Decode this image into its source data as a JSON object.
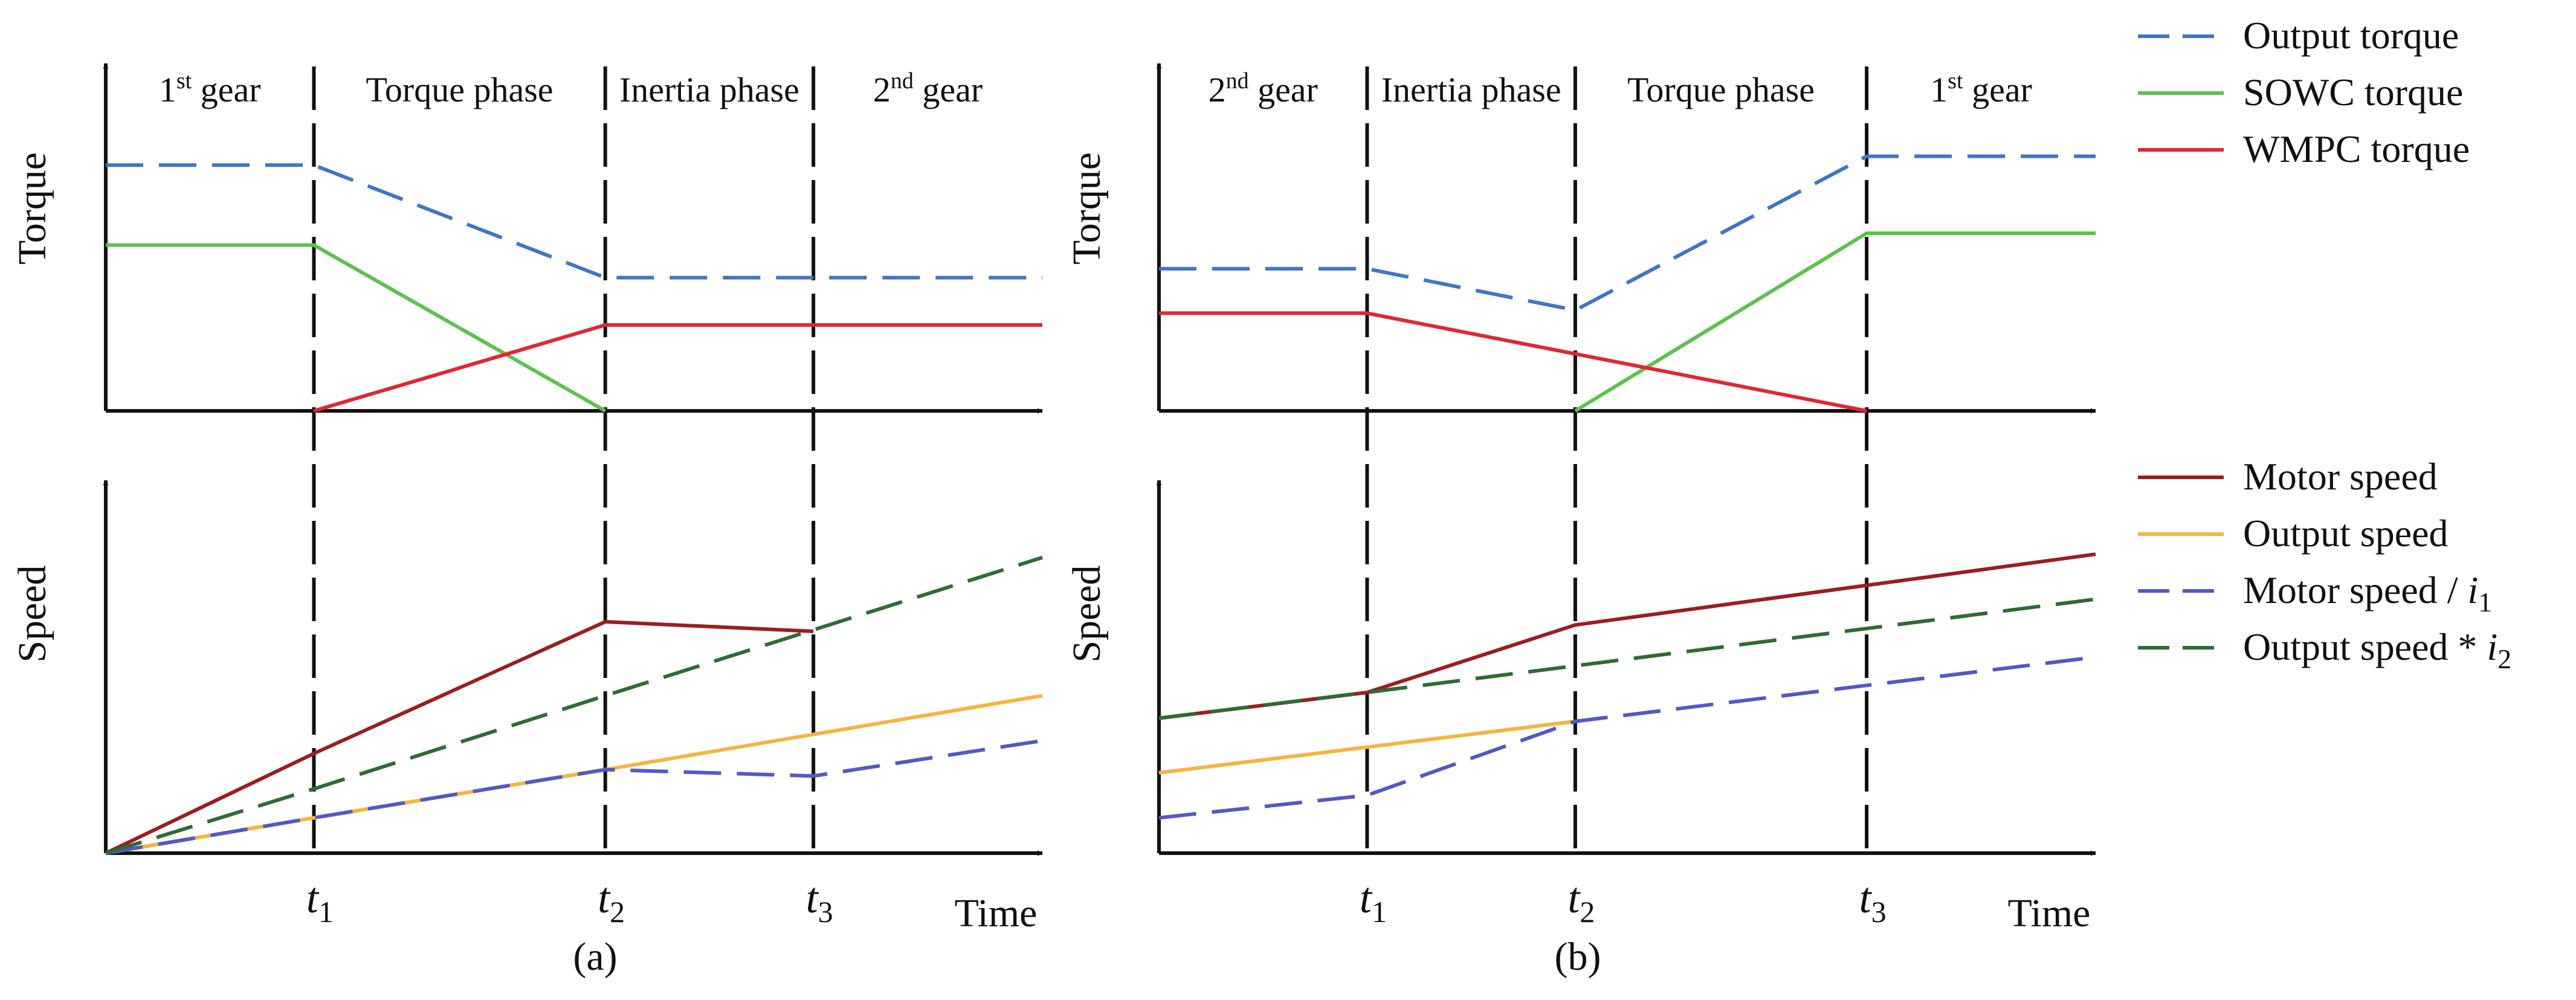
{
  "colors": {
    "output_torque": "#3F76C4",
    "sowc_torque": "#5CC24E",
    "wmpc_torque": "#E02734",
    "motor_speed": "#9A1E22",
    "output_speed": "#F5B440",
    "motor_speed_ratio": "#5458C4",
    "output_speed_ratio": "#2F6B33",
    "axis": "#111111"
  },
  "chart_data": [
    {
      "id": "a",
      "panel_label": "(a)",
      "type": "line",
      "phases": [
        "1st gear",
        "Torque phase",
        "Inertia phase",
        "2nd gear"
      ],
      "phase_rich": [
        {
          "base": "1",
          "sup": "st",
          "rest": " gear"
        },
        {
          "base": "Torque phase",
          "sup": "",
          "rest": ""
        },
        {
          "base": "Inertia phase",
          "sup": "",
          "rest": ""
        },
        {
          "base": "2",
          "sup": "nd",
          "rest": " gear"
        }
      ],
      "time_ticks": [
        {
          "base": "t",
          "sub": "1",
          "x": 1
        },
        {
          "base": "t",
          "sub": "2",
          "x": 2.4
        },
        {
          "base": "t",
          "sub": "3",
          "x": 3.4
        }
      ],
      "xlim": [
        0,
        4.5
      ],
      "xlabel": "Time",
      "torque": {
        "ylabel": "Torque",
        "ylim": [
          0,
          1
        ],
        "series": [
          {
            "name": "Output torque",
            "key": "output_torque",
            "dash": true,
            "x": [
              0,
              1,
              2.4,
              3.4,
              4.5
            ],
            "y": [
              0.83,
              0.83,
              0.45,
              0.45,
              0.45
            ]
          },
          {
            "name": "SOWC torque",
            "key": "sowc_torque",
            "dash": false,
            "x": [
              0,
              1,
              2.4
            ],
            "y": [
              0.56,
              0.56,
              0
            ]
          },
          {
            "name": "WMPC torque",
            "key": "wmpc_torque",
            "dash": false,
            "x": [
              1,
              2.4,
              4.5
            ],
            "y": [
              0,
              0.29,
              0.29
            ]
          }
        ]
      },
      "speed": {
        "ylabel": "Speed",
        "ylim": [
          0,
          1
        ],
        "series": [
          {
            "name": "Motor speed",
            "key": "motor_speed",
            "dash": false,
            "x": [
              0,
              1,
              2.4,
              3.4
            ],
            "y": [
              0,
              0.31,
              0.72,
              0.69
            ]
          },
          {
            "name": "Output speed",
            "key": "output_speed",
            "dash": false,
            "x": [
              0,
              1,
              2.4,
              4.5
            ],
            "y": [
              0,
              0.11,
              0.26,
              0.49
            ]
          },
          {
            "name": "Motor speed / i1",
            "key": "motor_speed_ratio",
            "dash": true,
            "x": [
              0,
              1,
              2.4,
              3.4,
              4.5
            ],
            "y": [
              0,
              0.11,
              0.26,
              0.24,
              0.35
            ]
          },
          {
            "name": "Output speed * i2",
            "key": "output_speed_ratio",
            "dash": true,
            "x": [
              0,
              1,
              2.4,
              4.5
            ],
            "y": [
              0,
              0.2,
              0.49,
              0.92
            ]
          }
        ]
      }
    },
    {
      "id": "b",
      "panel_label": "(b)",
      "type": "line",
      "phases": [
        "2nd gear",
        "Inertia phase",
        "Torque phase",
        "1st gear"
      ],
      "phase_rich": [
        {
          "base": "2",
          "sup": "nd",
          "rest": " gear"
        },
        {
          "base": "Inertia phase",
          "sup": "",
          "rest": ""
        },
        {
          "base": "Torque phase",
          "sup": "",
          "rest": ""
        },
        {
          "base": "1",
          "sup": "st",
          "rest": " gear"
        }
      ],
      "time_ticks": [
        {
          "base": "t",
          "sub": "1",
          "x": 1
        },
        {
          "base": "t",
          "sub": "2",
          "x": 2
        },
        {
          "base": "t",
          "sub": "3",
          "x": 3.4
        }
      ],
      "xlim": [
        0,
        4.5
      ],
      "xlabel": "Time",
      "torque": {
        "ylabel": "Torque",
        "ylim": [
          0,
          1
        ],
        "series": [
          {
            "name": "Output torque",
            "key": "output_torque",
            "dash": true,
            "x": [
              0,
              1,
              2,
              3.4,
              4.5
            ],
            "y": [
              0.48,
              0.48,
              0.34,
              0.86,
              0.86
            ]
          },
          {
            "name": "SOWC torque",
            "key": "sowc_torque",
            "dash": false,
            "x": [
              2,
              3.4,
              4.5
            ],
            "y": [
              0,
              0.6,
              0.6
            ]
          },
          {
            "name": "WMPC torque",
            "key": "wmpc_torque",
            "dash": false,
            "x": [
              0,
              1,
              3.4
            ],
            "y": [
              0.33,
              0.33,
              0
            ]
          }
        ]
      },
      "speed": {
        "ylabel": "Speed",
        "ylim": [
          0,
          1
        ],
        "series": [
          {
            "name": "Motor speed",
            "key": "motor_speed",
            "dash": false,
            "x": [
              0,
              1,
              2,
              4.5
            ],
            "y": [
              0.42,
              0.5,
              0.71,
              0.93
            ]
          },
          {
            "name": "Output speed",
            "key": "output_speed",
            "dash": false,
            "x": [
              0,
              2
            ],
            "y": [
              0.25,
              0.41
            ]
          },
          {
            "name": "Motor speed / i1",
            "key": "motor_speed_ratio",
            "dash": true,
            "x": [
              0,
              1,
              2,
              4.5
            ],
            "y": [
              0.11,
              0.18,
              0.41,
              0.61
            ]
          },
          {
            "name": "Output speed * i2",
            "key": "output_speed_ratio",
            "dash": true,
            "x": [
              0,
              1,
              4.5
            ],
            "y": [
              0.42,
              0.5,
              0.79
            ]
          }
        ]
      }
    }
  ],
  "legend": {
    "torque": [
      {
        "label": "Output torque",
        "key": "output_torque",
        "dash": true
      },
      {
        "label": "SOWC torque",
        "key": "sowc_torque",
        "dash": false
      },
      {
        "label": "WMPC torque",
        "key": "wmpc_torque",
        "dash": false
      }
    ],
    "speed": [
      {
        "label": "Motor speed",
        "key": "motor_speed",
        "dash": false,
        "base": "Motor speed",
        "op": "",
        "var": "",
        "sub": ""
      },
      {
        "label": "Output speed",
        "key": "output_speed",
        "dash": false,
        "base": "Output speed",
        "op": "",
        "var": "",
        "sub": ""
      },
      {
        "label": "Motor speed / i1",
        "key": "motor_speed_ratio",
        "dash": true,
        "base": "Motor speed",
        "op": " / ",
        "var": "i",
        "sub": "1"
      },
      {
        "label": "Output speed * i2",
        "key": "output_speed_ratio",
        "dash": true,
        "base": "Output speed",
        "op": " * ",
        "var": "i",
        "sub": "2"
      }
    ]
  }
}
